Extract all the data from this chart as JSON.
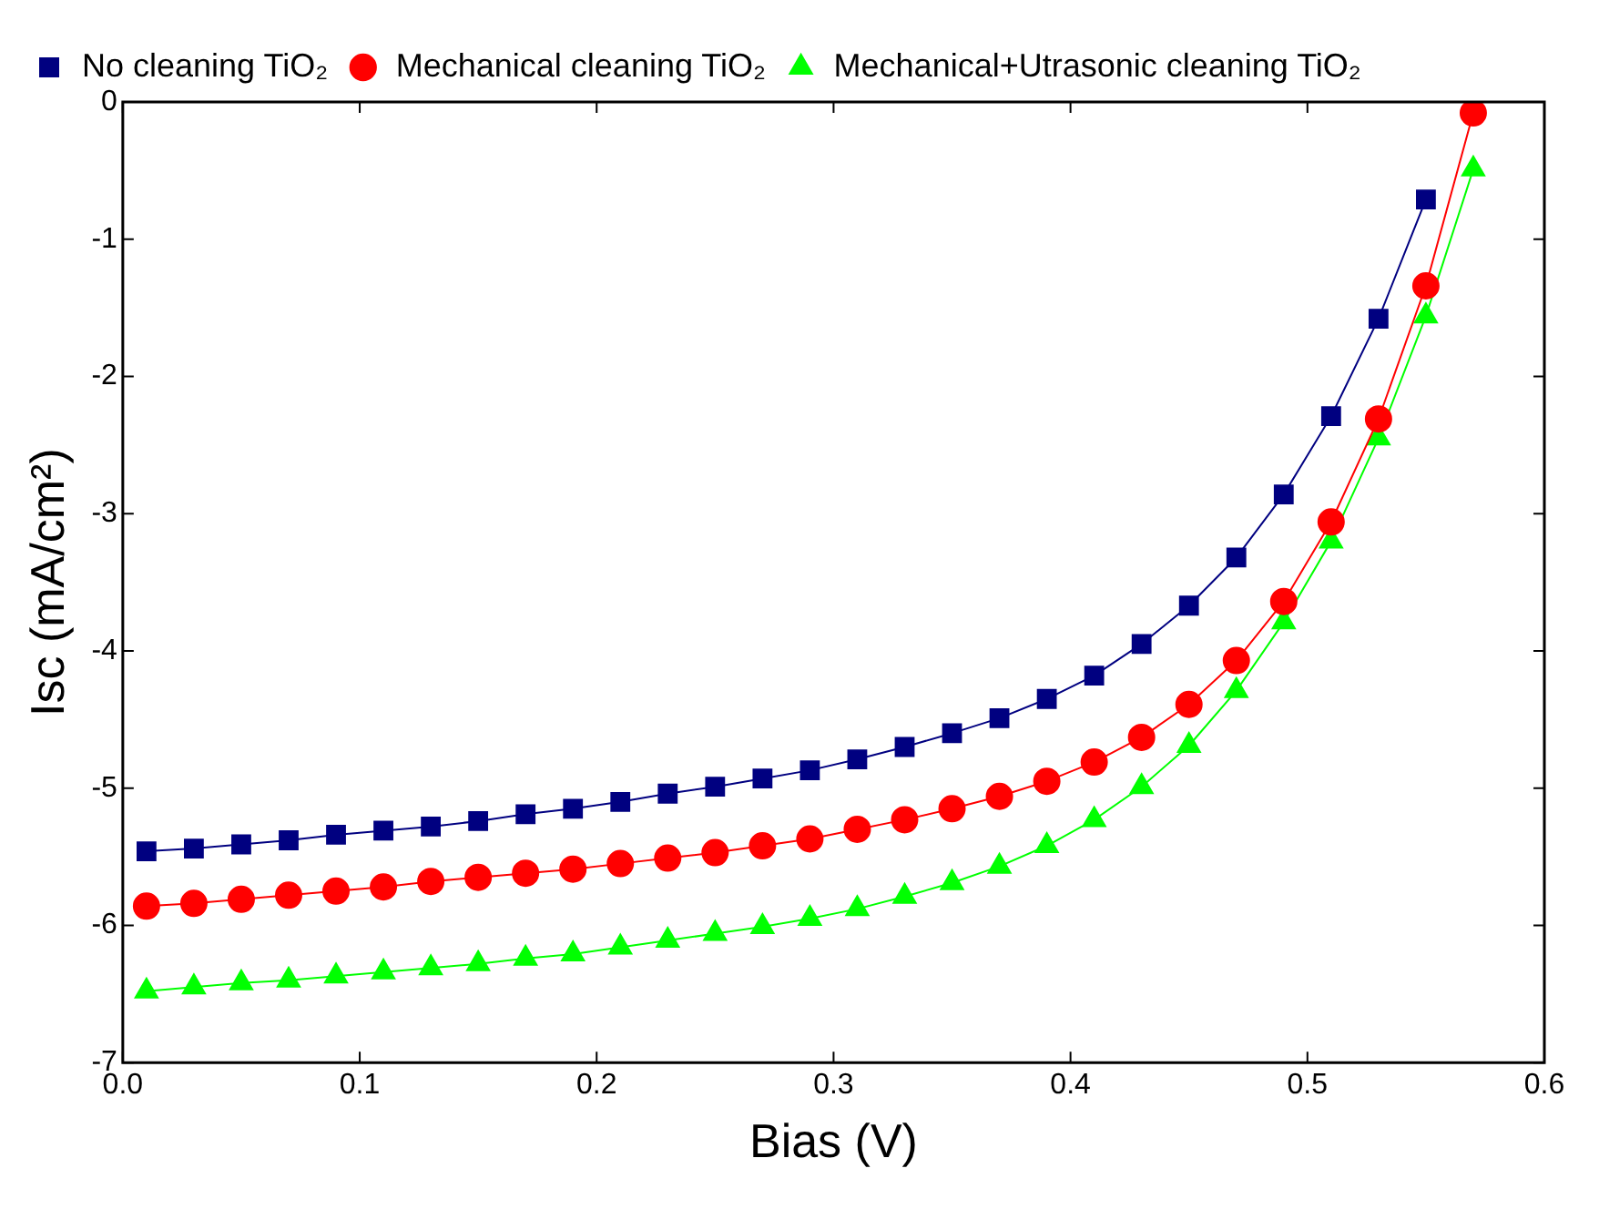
{
  "chart_data": {
    "type": "line",
    "xlabel": "Bias (V)",
    "ylabel": "Isc (mA/cm²)",
    "xlim": [
      0,
      0.6
    ],
    "ylim": [
      -7,
      0
    ],
    "xticks": [
      {
        "value": 0,
        "label": "0.0"
      },
      0.1,
      0.2,
      0.3,
      0.4,
      0.5,
      0.6
    ],
    "yticks": [
      -7,
      -6,
      -5,
      -4,
      -3,
      -2,
      -1,
      0
    ],
    "grid": false,
    "legend": "top left",
    "line_style": "solid",
    "x": [
      0.01,
      0.03,
      0.05,
      0.07,
      0.09,
      0.11,
      0.13,
      0.15,
      0.17,
      0.19,
      0.21,
      0.23,
      0.25,
      0.27,
      0.29,
      0.31,
      0.33,
      0.35,
      0.37,
      0.39,
      0.41,
      0.43,
      0.45,
      0.47,
      0.49,
      0.51,
      0.53,
      0.55,
      0.57
    ],
    "series": [
      {
        "name": "No cleaning TiO₂",
        "color": "#000080",
        "marker": "square",
        "values": [
          -5.46,
          -5.44,
          -5.41,
          -5.38,
          -5.34,
          -5.31,
          -5.28,
          -5.24,
          -5.19,
          -5.15,
          -5.1,
          -5.04,
          -4.99,
          -4.93,
          -4.87,
          -4.79,
          -4.7,
          -4.6,
          -4.49,
          -4.35,
          -4.18,
          -3.95,
          -3.67,
          -3.32,
          -2.86,
          -2.29,
          -1.58,
          -0.71,
          null
        ]
      },
      {
        "name": "Mechanical cleaning TiO₂",
        "color": "#ff0000",
        "marker": "circle",
        "values": [
          -5.86,
          -5.84,
          -5.81,
          -5.78,
          -5.75,
          -5.72,
          -5.68,
          -5.65,
          -5.62,
          -5.59,
          -5.55,
          -5.51,
          -5.47,
          -5.42,
          -5.37,
          -5.3,
          -5.23,
          -5.15,
          -5.06,
          -4.95,
          -4.81,
          -4.63,
          -4.39,
          -4.07,
          -3.64,
          -3.06,
          -2.31,
          -1.34,
          -0.08
        ]
      },
      {
        "name": "Mechanical+Utrasonic cleaning TiO₂",
        "color": "#00ff00",
        "marker": "triangle",
        "values": [
          -6.48,
          -6.45,
          -6.42,
          -6.4,
          -6.37,
          -6.34,
          -6.31,
          -6.28,
          -6.24,
          -6.21,
          -6.16,
          -6.11,
          -6.06,
          -6.01,
          -5.95,
          -5.88,
          -5.79,
          -5.69,
          -5.57,
          -5.42,
          -5.23,
          -4.99,
          -4.69,
          -4.29,
          -3.79,
          -3.2,
          -2.45,
          -1.56,
          -0.49
        ]
      }
    ]
  }
}
